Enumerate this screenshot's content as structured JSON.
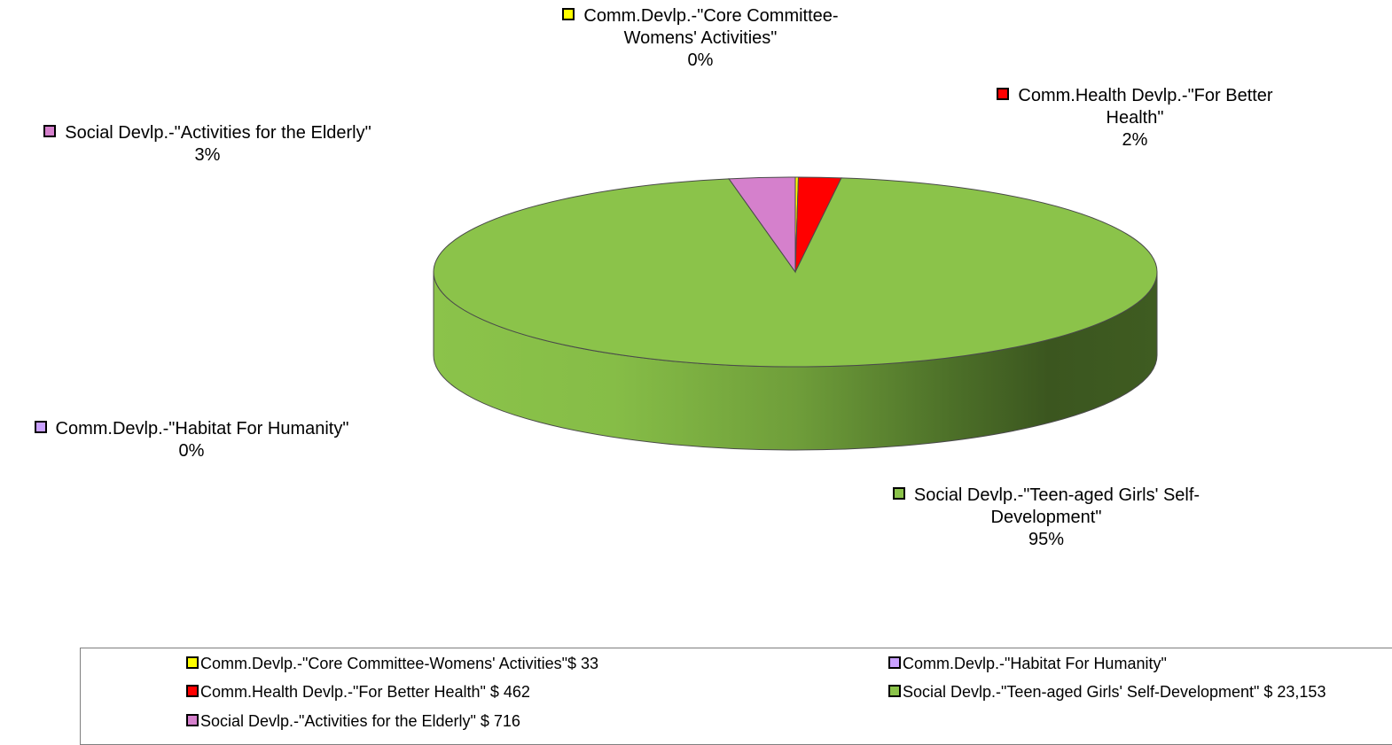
{
  "chart_data": {
    "type": "pie",
    "three_d": true,
    "slices": [
      {
        "label": "Comm.Devlp.-\"Core Committee-Womens'  Activities\"",
        "label_lines": [
          "Comm.Devlp.-\"Core Committee-",
          "Womens'  Activities\""
        ],
        "pct": "0%",
        "legend": "Comm.Devlp.-\"Core Committee-Womens'  Activities\"$ 33",
        "value": 33,
        "color": "#ffff00"
      },
      {
        "label": "Comm.Health Devlp.-\"For Better Health\"",
        "label_lines": [
          "Comm.Health Devlp.-\"For Better",
          "Health\""
        ],
        "pct": "2%",
        "legend": "Comm.Health Devlp.-\"For Better Health\" $ 462",
        "value": 462,
        "color": "#ff0000"
      },
      {
        "label": "Social Devlp.-\"Teen-aged Girls' Self-Development\"",
        "label_lines": [
          "Social Devlp.-\"Teen-aged Girls' Self-",
          "Development\""
        ],
        "pct": "95%",
        "legend": "Social Devlp.-\"Teen-aged Girls' Self-Development\" $ 23,153",
        "value": 23153,
        "color": "#8bc34a"
      },
      {
        "label": "Comm.Devlp.-\"Habitat For Humanity\"",
        "label_lines": [
          "Comm.Devlp.-\"Habitat For Humanity\""
        ],
        "pct": "0%",
        "legend": "Comm.Devlp.-\"Habitat For Humanity\"",
        "value": 0,
        "color": "#c9a0ff"
      },
      {
        "label": "Social Devlp.-\"Activities for the Elderly\"",
        "label_lines": [
          "Social Devlp.-\"Activities for the Elderly\""
        ],
        "pct": "3%",
        "legend": "Social Devlp.-\"Activities for the Elderly\" $ 716",
        "value": 716,
        "color": "#d580cc"
      }
    ],
    "legend_position": "bottom"
  }
}
